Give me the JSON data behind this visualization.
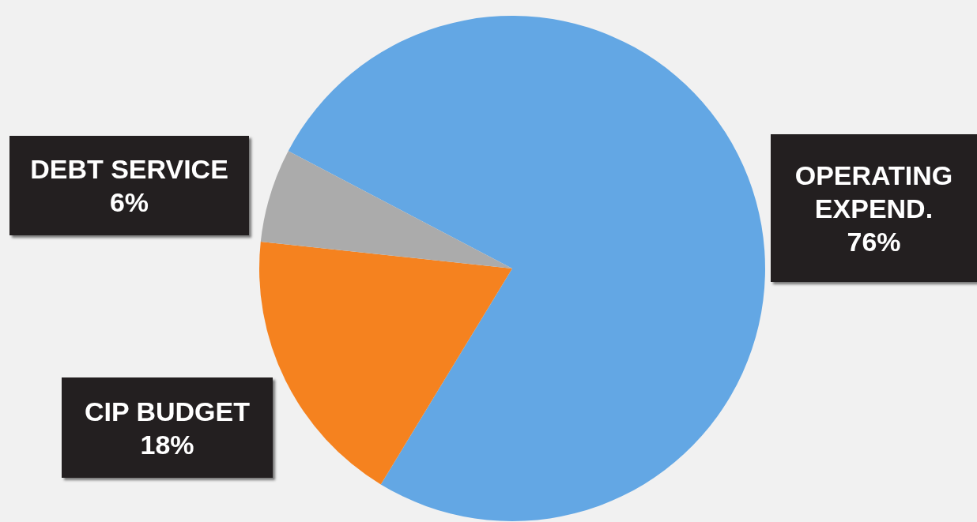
{
  "chart_data": {
    "type": "pie",
    "categories": [
      "OPERATING EXPEND.",
      "CIP BUDGET",
      "DEBT SERVICE"
    ],
    "values": [
      76,
      18,
      6
    ],
    "colors": [
      "#63a7e4",
      "#f5821f",
      "#ababab"
    ],
    "value_labels": [
      "76%",
      "18%",
      "6%"
    ]
  }
}
